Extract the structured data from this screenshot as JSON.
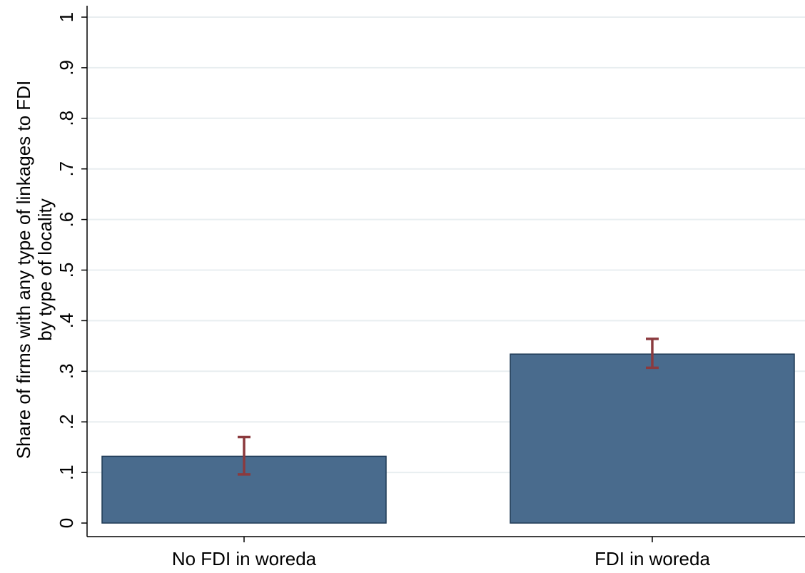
{
  "chart_data": {
    "type": "bar",
    "categories": [
      "No FDI in woreda",
      "FDI in woreda"
    ],
    "values": [
      0.132,
      0.334
    ],
    "error_bars": [
      {
        "low": 0.096,
        "high": 0.17
      },
      {
        "low": 0.307,
        "high": 0.364
      }
    ],
    "title": "",
    "xlabel": "",
    "ylabel": [
      "Share of firms with any type of linkages to FDI",
      "by type of locality"
    ],
    "ylim": [
      0,
      1
    ],
    "yticks": [
      0,
      0.1,
      0.2,
      0.3,
      0.4,
      0.5,
      0.6,
      0.7,
      0.8,
      0.9,
      1
    ],
    "ytick_labels": [
      "0",
      ".1",
      ".2",
      ".3",
      ".4",
      ".5",
      ".6",
      ".7",
      ".8",
      ".9",
      "1"
    ],
    "grid": true,
    "colors": {
      "bar_fill": "#496b8d",
      "bar_stroke": "#1f3a55",
      "error_bar": "#8b3a3e",
      "grid": "#e8eef0",
      "axis": "#000000"
    }
  }
}
